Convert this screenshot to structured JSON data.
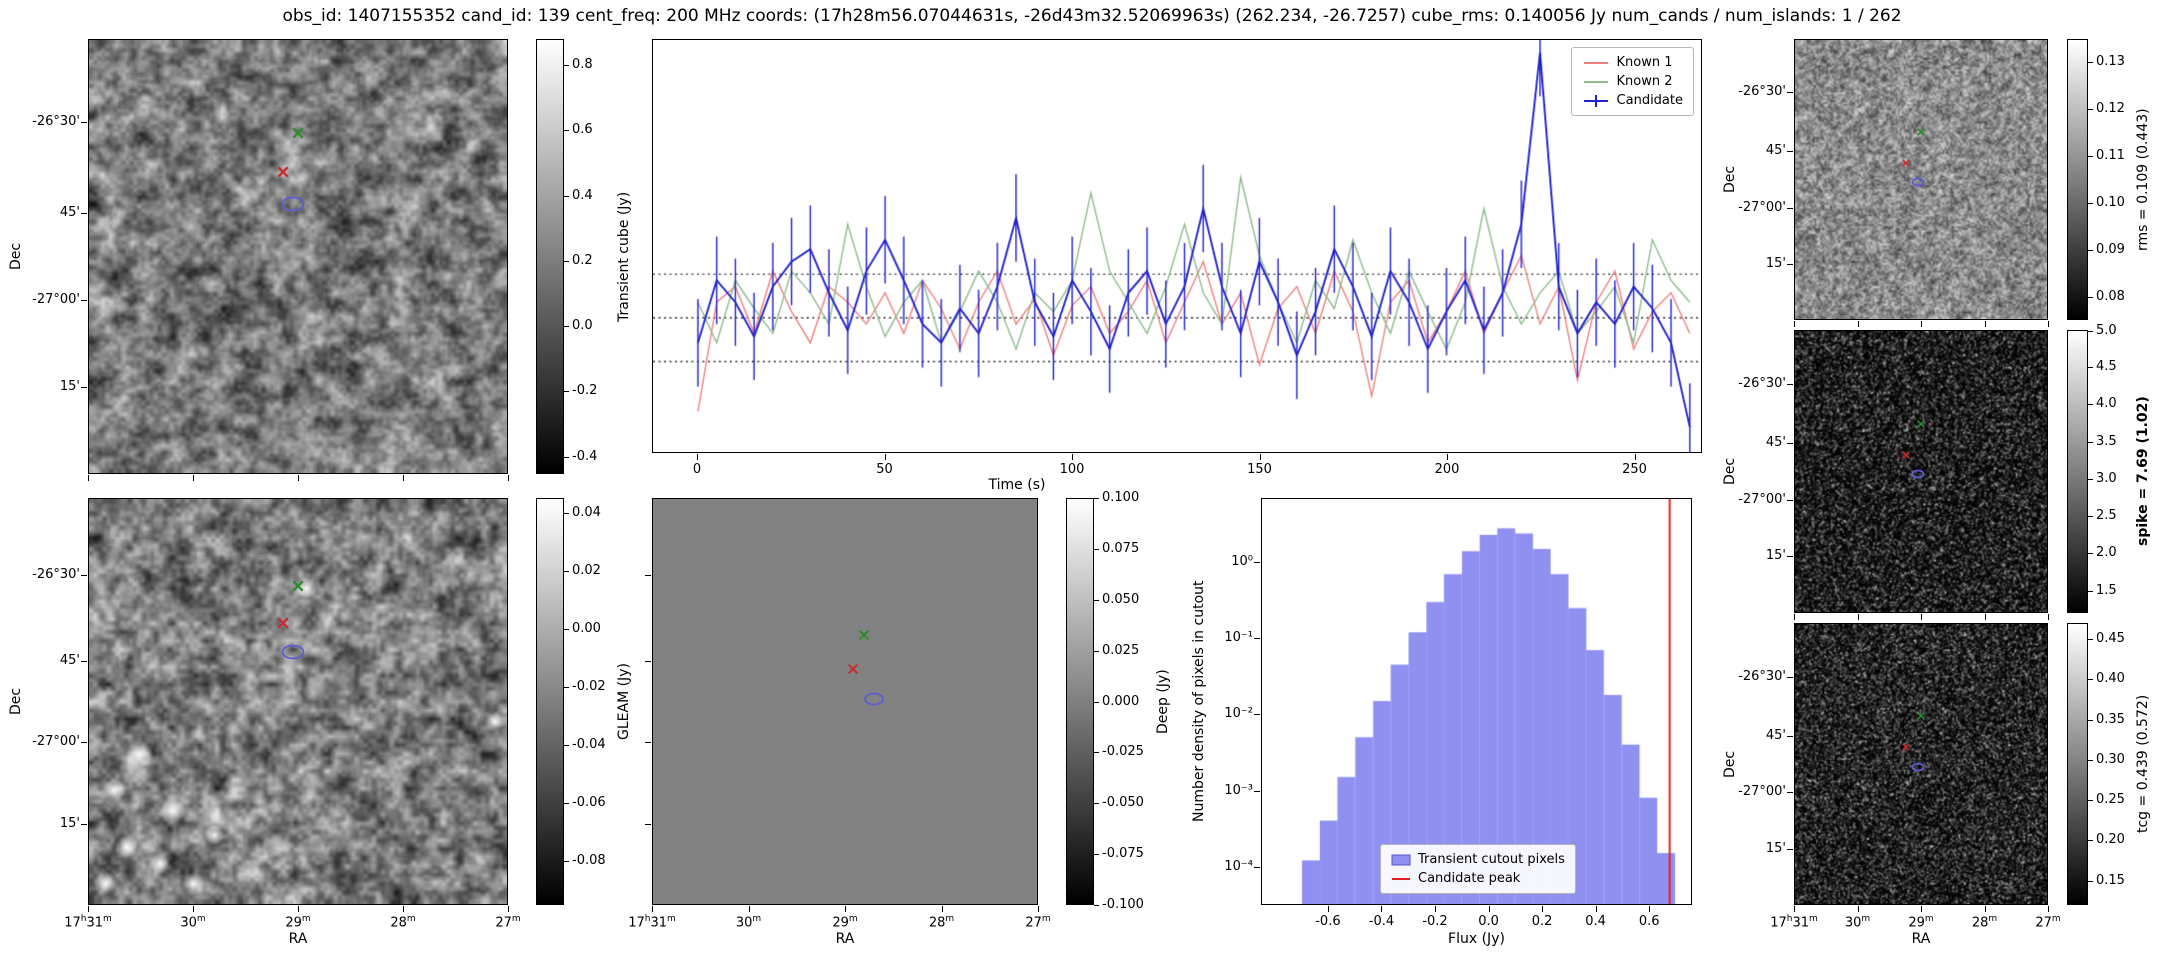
{
  "title": "obs_id: 1407155352 cand_id: 139 cent_freq: 200 MHz coords: (17h28m56.07044631s, -26d43m32.52069963s) (262.234, -26.7257) cube_rms: 0.140056 Jy num_cands / num_islands: 1 / 262",
  "axes": {
    "dec_label": "Dec",
    "ra_label": "RA",
    "dec_ticks": [
      "-26°30'",
      "45'",
      "-27°00'",
      "15'"
    ],
    "ra_ticks": [
      "17h31m",
      "30m",
      "29m",
      "28m",
      "27m"
    ]
  },
  "panels": {
    "transient_cube": {
      "colorbar_label": "Transient cube (Jy)",
      "colorbar_ticks": [
        "0.8",
        "0.6",
        "0.4",
        "0.2",
        "0.0",
        "-0.2",
        "-0.4"
      ]
    },
    "gleam": {
      "colorbar_label": "GLEAM (Jy)",
      "colorbar_ticks": [
        "0.04",
        "0.02",
        "0.00",
        "-0.02",
        "-0.04",
        "-0.06",
        "-0.08"
      ]
    },
    "deep": {
      "colorbar_label": "Deep (Jy)",
      "colorbar_ticks": [
        "0.100",
        "0.075",
        "0.050",
        "0.025",
        "0.000",
        "-0.025",
        "-0.050",
        "-0.075",
        "-0.100"
      ]
    },
    "rms": {
      "colorbar_label": "rms = 0.109 (0.443)",
      "colorbar_ticks": [
        "0.13",
        "0.12",
        "0.11",
        "0.10",
        "0.09",
        "0.08"
      ]
    },
    "spike": {
      "colorbar_label": "spike = 7.69 (1.02)",
      "colorbar_ticks": [
        "5.0",
        "4.5",
        "4.0",
        "3.5",
        "3.0",
        "2.5",
        "2.0",
        "1.5"
      ]
    },
    "tcg": {
      "colorbar_label": "tcg = 0.439 (0.572)",
      "colorbar_ticks": [
        "0.45",
        "0.40",
        "0.35",
        "0.30",
        "0.25",
        "0.20",
        "0.15"
      ]
    }
  },
  "markers": {
    "known1": {
      "name": "Known 1",
      "symbol": "x",
      "color": "#cc2a2a"
    },
    "known2": {
      "name": "Known 2",
      "symbol": "x",
      "color": "#2e8b2e"
    },
    "candidate": {
      "name": "Candidate",
      "symbol": "ellipse",
      "color": "#5c5cd6"
    }
  },
  "chart_data": [
    {
      "id": "lightcurve",
      "type": "line",
      "xlabel": "Time (s)",
      "x_ticks": [
        0,
        50,
        100,
        150,
        200,
        250
      ],
      "xlim": [
        -12,
        268
      ],
      "ylim": [
        -0.43,
        0.89
      ],
      "reference_lines": [
        0.14,
        0.0,
        -0.14
      ],
      "legend_position": "upper right",
      "x": [
        0,
        5,
        10,
        15,
        20,
        25,
        30,
        35,
        40,
        45,
        50,
        55,
        60,
        65,
        70,
        75,
        80,
        85,
        90,
        95,
        100,
        105,
        110,
        115,
        120,
        125,
        130,
        135,
        140,
        145,
        150,
        155,
        160,
        165,
        170,
        175,
        180,
        185,
        190,
        195,
        200,
        205,
        210,
        215,
        220,
        225,
        230,
        235,
        240,
        245,
        250,
        255,
        260,
        265
      ],
      "series": [
        {
          "name": "Known 1",
          "color": "#f08080",
          "values": [
            -0.3,
            0.05,
            0.1,
            -0.05,
            0.15,
            0.02,
            -0.08,
            0.1,
            0.05,
            -0.02,
            0.08,
            -0.05,
            0.12,
            0.03,
            -0.1,
            0.05,
            0.15,
            -0.02,
            0.06,
            -0.12,
            0.04,
            0.1,
            -0.05,
            0.02,
            0.12,
            -0.08,
            0.05,
            0.18,
            -0.02,
            0.08,
            -0.15,
            0.03,
            0.1,
            -0.05,
            0.15,
            0.02,
            -0.25,
            0.05,
            0.12,
            -0.08,
            0.02,
            0.15,
            -0.05,
            0.08,
            0.2,
            -0.02,
            0.1,
            -0.2,
            0.05,
            0.15,
            -0.1,
            0.02,
            0.08,
            -0.05
          ]
        },
        {
          "name": "Known 2",
          "color": "#8fbc8f",
          "values": [
            0.05,
            -0.08,
            0.12,
            0.03,
            -0.05,
            0.15,
            0.08,
            -0.02,
            0.3,
            0.1,
            -0.06,
            0.05,
            0.12,
            -0.08,
            0.02,
            0.15,
            0.05,
            -0.1,
            0.08,
            0.02,
            0.12,
            0.4,
            0.15,
            0.05,
            -0.05,
            0.1,
            0.3,
            0.08,
            -0.02,
            0.45,
            0.2,
            0.05,
            -0.08,
            0.12,
            0.03,
            0.25,
            0.08,
            -0.05,
            0.15,
            0.02,
            -0.1,
            0.05,
            0.35,
            0.1,
            -0.02,
            0.08,
            0.15,
            -0.05,
            0.02,
            0.1,
            -0.08,
            0.25,
            0.12,
            0.05
          ]
        },
        {
          "name": "Candidate",
          "color": "#2222cc",
          "errorbar": 0.14,
          "values": [
            -0.08,
            0.12,
            0.05,
            -0.06,
            0.1,
            0.18,
            0.22,
            0.08,
            -0.04,
            0.15,
            0.25,
            0.12,
            -0.02,
            -0.08,
            0.03,
            -0.05,
            0.1,
            0.32,
            0.05,
            -0.06,
            0.12,
            0.02,
            -0.1,
            0.08,
            0.15,
            -0.02,
            0.1,
            0.35,
            0.1,
            -0.05,
            0.18,
            0.05,
            -0.12,
            0.02,
            0.22,
            0.1,
            -0.06,
            0.15,
            0.05,
            -0.1,
            0.02,
            0.12,
            -0.04,
            0.08,
            0.3,
            0.85,
            0.1,
            -0.05,
            0.05,
            -0.02,
            0.1,
            0.03,
            -0.08,
            -0.35
          ]
        }
      ]
    },
    {
      "id": "flux_histogram",
      "type": "bar",
      "xlabel": "Flux (Jy)",
      "ylabel": "Number density of pixels in cutout",
      "yscale": "log",
      "xlim": [
        -0.85,
        0.76
      ],
      "ylim": [
        3.2e-05,
        6.8
      ],
      "x_ticks": [
        "-0.6",
        "-0.4",
        "-0.2",
        "0.0",
        "0.2",
        "0.4",
        "0.6"
      ],
      "x_tick_values": [
        -0.6,
        -0.4,
        -0.2,
        0,
        0.2,
        0.4,
        0.6
      ],
      "y_ticks": [
        "10⁰",
        "10⁻¹",
        "10⁻²",
        "10⁻³",
        "10⁻⁴"
      ],
      "y_tick_values": [
        1,
        0.1,
        0.01,
        0.001,
        0.0001
      ],
      "bin_edges": [
        -0.7,
        -0.633,
        -0.567,
        -0.5,
        -0.433,
        -0.367,
        -0.3,
        -0.233,
        -0.167,
        -0.1,
        -0.033,
        0.033,
        0.1,
        0.167,
        0.233,
        0.3,
        0.367,
        0.433,
        0.5,
        0.567,
        0.633,
        0.7
      ],
      "values": [
        0.00012,
        0.0004,
        0.0015,
        0.005,
        0.015,
        0.045,
        0.12,
        0.3,
        0.7,
        1.4,
        2.3,
        2.8,
        2.4,
        1.5,
        0.7,
        0.25,
        0.07,
        0.018,
        0.004,
        0.0008,
        0.00015
      ],
      "candidate_peak": 0.68,
      "bar_color": "#7d7dee",
      "line_color": "#e02020",
      "legend": [
        "Transient cutout pixels",
        "Candidate peak"
      ]
    }
  ]
}
